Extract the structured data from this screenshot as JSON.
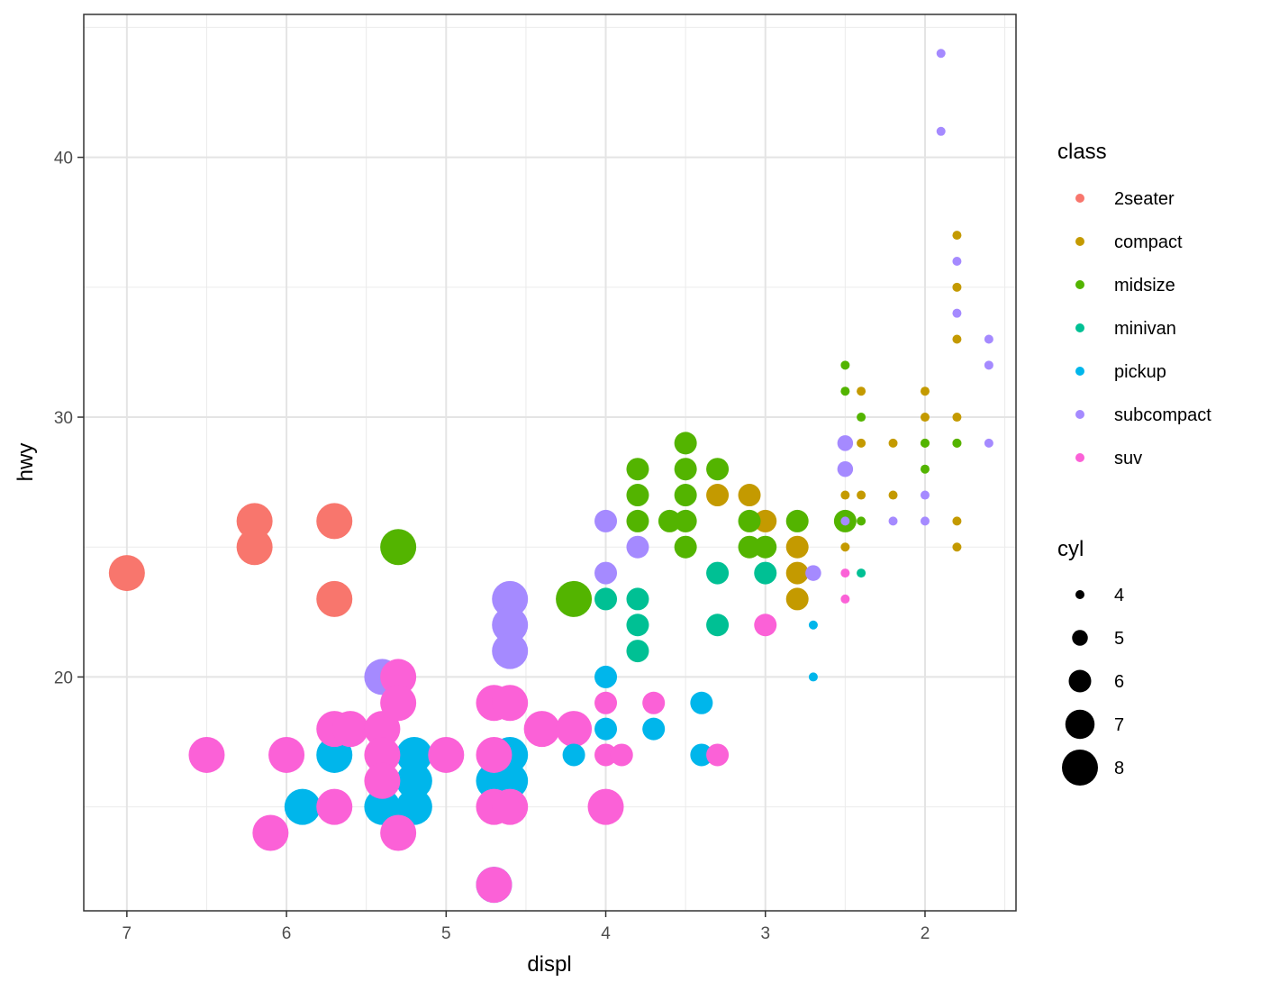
{
  "chart_data": {
    "type": "scatter",
    "title": "",
    "xlabel": "displ",
    "ylabel": "hwy",
    "x_reversed": true,
    "xlim": [
      7.27,
      1.43
    ],
    "ylim": [
      11.0,
      45.5
    ],
    "x_ticks": [
      7,
      6,
      5,
      4,
      3,
      2
    ],
    "y_ticks": [
      20,
      30,
      40
    ],
    "grid": true,
    "legend_placement": "right",
    "color_legend": {
      "title": "class",
      "entries": [
        {
          "label": "2seater",
          "color": "#F8766D"
        },
        {
          "label": "compact",
          "color": "#C49A00"
        },
        {
          "label": "midsize",
          "color": "#53B400"
        },
        {
          "label": "minivan",
          "color": "#00C094"
        },
        {
          "label": "pickup",
          "color": "#00B6EB"
        },
        {
          "label": "subcompact",
          "color": "#A58AFF"
        },
        {
          "label": "suv",
          "color": "#FB61D7"
        }
      ]
    },
    "size_legend": {
      "title": "cyl",
      "entries": [
        {
          "label": "4",
          "value": 4
        },
        {
          "label": "5",
          "value": 5
        },
        {
          "label": "6",
          "value": 6
        },
        {
          "label": "7",
          "value": 7
        },
        {
          "label": "8",
          "value": 8
        }
      ]
    },
    "points": [
      {
        "x": 7.0,
        "y": 24,
        "class": "2seater",
        "cyl": 8
      },
      {
        "x": 6.2,
        "y": 26,
        "class": "2seater",
        "cyl": 8
      },
      {
        "x": 6.2,
        "y": 25,
        "class": "2seater",
        "cyl": 8
      },
      {
        "x": 5.7,
        "y": 26,
        "class": "2seater",
        "cyl": 8
      },
      {
        "x": 5.7,
        "y": 23,
        "class": "2seater",
        "cyl": 8
      },
      {
        "x": 3.3,
        "y": 27,
        "class": "compact",
        "cyl": 6
      },
      {
        "x": 3.1,
        "y": 27,
        "class": "compact",
        "cyl": 6
      },
      {
        "x": 3.0,
        "y": 26,
        "class": "compact",
        "cyl": 6
      },
      {
        "x": 2.8,
        "y": 25,
        "class": "compact",
        "cyl": 6
      },
      {
        "x": 2.8,
        "y": 24,
        "class": "compact",
        "cyl": 6
      },
      {
        "x": 2.8,
        "y": 23,
        "class": "compact",
        "cyl": 6
      },
      {
        "x": 2.5,
        "y": 27,
        "class": "compact",
        "cyl": 4
      },
      {
        "x": 2.5,
        "y": 25,
        "class": "compact",
        "cyl": 4
      },
      {
        "x": 2.4,
        "y": 31,
        "class": "compact",
        "cyl": 4
      },
      {
        "x": 2.4,
        "y": 29,
        "class": "compact",
        "cyl": 4
      },
      {
        "x": 2.4,
        "y": 27,
        "class": "compact",
        "cyl": 4
      },
      {
        "x": 2.2,
        "y": 29,
        "class": "compact",
        "cyl": 4
      },
      {
        "x": 2.2,
        "y": 27,
        "class": "compact",
        "cyl": 4
      },
      {
        "x": 2.0,
        "y": 31,
        "class": "compact",
        "cyl": 4
      },
      {
        "x": 2.0,
        "y": 30,
        "class": "compact",
        "cyl": 4
      },
      {
        "x": 2.0,
        "y": 29,
        "class": "compact",
        "cyl": 4
      },
      {
        "x": 1.8,
        "y": 37,
        "class": "compact",
        "cyl": 4
      },
      {
        "x": 1.8,
        "y": 35,
        "class": "compact",
        "cyl": 4
      },
      {
        "x": 1.8,
        "y": 33,
        "class": "compact",
        "cyl": 4
      },
      {
        "x": 1.8,
        "y": 30,
        "class": "compact",
        "cyl": 4
      },
      {
        "x": 1.8,
        "y": 29,
        "class": "compact",
        "cyl": 4
      },
      {
        "x": 1.8,
        "y": 26,
        "class": "compact",
        "cyl": 4
      },
      {
        "x": 1.8,
        "y": 25,
        "class": "compact",
        "cyl": 4
      },
      {
        "x": 5.3,
        "y": 25,
        "class": "midsize",
        "cyl": 8
      },
      {
        "x": 4.2,
        "y": 23,
        "class": "midsize",
        "cyl": 8
      },
      {
        "x": 3.8,
        "y": 28,
        "class": "midsize",
        "cyl": 6
      },
      {
        "x": 3.8,
        "y": 27,
        "class": "midsize",
        "cyl": 6
      },
      {
        "x": 3.8,
        "y": 26,
        "class": "midsize",
        "cyl": 6
      },
      {
        "x": 3.6,
        "y": 26,
        "class": "midsize",
        "cyl": 6
      },
      {
        "x": 3.5,
        "y": 29,
        "class": "midsize",
        "cyl": 6
      },
      {
        "x": 3.5,
        "y": 28,
        "class": "midsize",
        "cyl": 6
      },
      {
        "x": 3.5,
        "y": 27,
        "class": "midsize",
        "cyl": 6
      },
      {
        "x": 3.5,
        "y": 26,
        "class": "midsize",
        "cyl": 6
      },
      {
        "x": 3.5,
        "y": 25,
        "class": "midsize",
        "cyl": 6
      },
      {
        "x": 3.3,
        "y": 28,
        "class": "midsize",
        "cyl": 6
      },
      {
        "x": 3.1,
        "y": 26,
        "class": "midsize",
        "cyl": 6
      },
      {
        "x": 3.1,
        "y": 25,
        "class": "midsize",
        "cyl": 6
      },
      {
        "x": 3.0,
        "y": 25,
        "class": "midsize",
        "cyl": 6
      },
      {
        "x": 2.8,
        "y": 26,
        "class": "midsize",
        "cyl": 6
      },
      {
        "x": 2.5,
        "y": 26,
        "class": "midsize",
        "cyl": 6
      },
      {
        "x": 2.5,
        "y": 32,
        "class": "midsize",
        "cyl": 4
      },
      {
        "x": 2.5,
        "y": 31,
        "class": "midsize",
        "cyl": 4
      },
      {
        "x": 2.4,
        "y": 30,
        "class": "midsize",
        "cyl": 4
      },
      {
        "x": 2.4,
        "y": 26,
        "class": "midsize",
        "cyl": 4
      },
      {
        "x": 2.0,
        "y": 29,
        "class": "midsize",
        "cyl": 4
      },
      {
        "x": 2.0,
        "y": 28,
        "class": "midsize",
        "cyl": 4
      },
      {
        "x": 1.8,
        "y": 29,
        "class": "midsize",
        "cyl": 4
      },
      {
        "x": 3.8,
        "y": 23,
        "class": "minivan",
        "cyl": 6
      },
      {
        "x": 3.8,
        "y": 22,
        "class": "minivan",
        "cyl": 6
      },
      {
        "x": 3.8,
        "y": 21,
        "class": "minivan",
        "cyl": 6
      },
      {
        "x": 4.0,
        "y": 23,
        "class": "minivan",
        "cyl": 6
      },
      {
        "x": 3.3,
        "y": 24,
        "class": "minivan",
        "cyl": 6
      },
      {
        "x": 3.3,
        "y": 22,
        "class": "minivan",
        "cyl": 6
      },
      {
        "x": 3.0,
        "y": 24,
        "class": "minivan",
        "cyl": 6
      },
      {
        "x": 2.4,
        "y": 24,
        "class": "minivan",
        "cyl": 4
      },
      {
        "x": 5.9,
        "y": 15,
        "class": "pickup",
        "cyl": 8
      },
      {
        "x": 5.7,
        "y": 17,
        "class": "pickup",
        "cyl": 8
      },
      {
        "x": 5.4,
        "y": 15,
        "class": "pickup",
        "cyl": 8
      },
      {
        "x": 5.2,
        "y": 17,
        "class": "pickup",
        "cyl": 8
      },
      {
        "x": 5.2,
        "y": 16,
        "class": "pickup",
        "cyl": 8
      },
      {
        "x": 5.2,
        "y": 15,
        "class": "pickup",
        "cyl": 8
      },
      {
        "x": 4.7,
        "y": 16,
        "class": "pickup",
        "cyl": 8
      },
      {
        "x": 4.7,
        "y": 12,
        "class": "pickup",
        "cyl": 8
      },
      {
        "x": 4.6,
        "y": 17,
        "class": "pickup",
        "cyl": 8
      },
      {
        "x": 4.6,
        "y": 16,
        "class": "pickup",
        "cyl": 8
      },
      {
        "x": 4.2,
        "y": 17,
        "class": "pickup",
        "cyl": 6
      },
      {
        "x": 4.0,
        "y": 20,
        "class": "pickup",
        "cyl": 6
      },
      {
        "x": 4.0,
        "y": 18,
        "class": "pickup",
        "cyl": 6
      },
      {
        "x": 3.7,
        "y": 18,
        "class": "pickup",
        "cyl": 6
      },
      {
        "x": 3.4,
        "y": 19,
        "class": "pickup",
        "cyl": 6
      },
      {
        "x": 3.4,
        "y": 17,
        "class": "pickup",
        "cyl": 6
      },
      {
        "x": 2.7,
        "y": 22,
        "class": "pickup",
        "cyl": 4
      },
      {
        "x": 2.7,
        "y": 20,
        "class": "pickup",
        "cyl": 4
      },
      {
        "x": 5.4,
        "y": 20,
        "class": "subcompact",
        "cyl": 8
      },
      {
        "x": 4.6,
        "y": 23,
        "class": "subcompact",
        "cyl": 8
      },
      {
        "x": 4.6,
        "y": 22,
        "class": "subcompact",
        "cyl": 8
      },
      {
        "x": 4.6,
        "y": 21,
        "class": "subcompact",
        "cyl": 8
      },
      {
        "x": 4.0,
        "y": 26,
        "class": "subcompact",
        "cyl": 6
      },
      {
        "x": 4.0,
        "y": 24,
        "class": "subcompact",
        "cyl": 6
      },
      {
        "x": 3.8,
        "y": 25,
        "class": "subcompact",
        "cyl": 6
      },
      {
        "x": 2.7,
        "y": 24,
        "class": "subcompact",
        "cyl": 5
      },
      {
        "x": 2.5,
        "y": 29,
        "class": "subcompact",
        "cyl": 5
      },
      {
        "x": 2.5,
        "y": 28,
        "class": "subcompact",
        "cyl": 5
      },
      {
        "x": 2.5,
        "y": 26,
        "class": "subcompact",
        "cyl": 4
      },
      {
        "x": 2.2,
        "y": 26,
        "class": "subcompact",
        "cyl": 4
      },
      {
        "x": 2.0,
        "y": 27,
        "class": "subcompact",
        "cyl": 4
      },
      {
        "x": 2.0,
        "y": 26,
        "class": "subcompact",
        "cyl": 4
      },
      {
        "x": 1.9,
        "y": 44,
        "class": "subcompact",
        "cyl": 4
      },
      {
        "x": 1.9,
        "y": 41,
        "class": "subcompact",
        "cyl": 4
      },
      {
        "x": 1.8,
        "y": 36,
        "class": "subcompact",
        "cyl": 4
      },
      {
        "x": 1.8,
        "y": 34,
        "class": "subcompact",
        "cyl": 4
      },
      {
        "x": 1.6,
        "y": 33,
        "class": "subcompact",
        "cyl": 4
      },
      {
        "x": 1.6,
        "y": 32,
        "class": "subcompact",
        "cyl": 4
      },
      {
        "x": 1.6,
        "y": 29,
        "class": "subcompact",
        "cyl": 4
      },
      {
        "x": 6.5,
        "y": 17,
        "class": "suv",
        "cyl": 8
      },
      {
        "x": 6.1,
        "y": 14,
        "class": "suv",
        "cyl": 8
      },
      {
        "x": 6.0,
        "y": 17,
        "class": "suv",
        "cyl": 8
      },
      {
        "x": 5.7,
        "y": 18,
        "class": "suv",
        "cyl": 8
      },
      {
        "x": 5.7,
        "y": 15,
        "class": "suv",
        "cyl": 8
      },
      {
        "x": 5.6,
        "y": 18,
        "class": "suv",
        "cyl": 8
      },
      {
        "x": 5.4,
        "y": 18,
        "class": "suv",
        "cyl": 8
      },
      {
        "x": 5.4,
        "y": 17,
        "class": "suv",
        "cyl": 8
      },
      {
        "x": 5.4,
        "y": 16,
        "class": "suv",
        "cyl": 8
      },
      {
        "x": 5.3,
        "y": 20,
        "class": "suv",
        "cyl": 8
      },
      {
        "x": 5.3,
        "y": 19,
        "class": "suv",
        "cyl": 8
      },
      {
        "x": 5.3,
        "y": 14,
        "class": "suv",
        "cyl": 8
      },
      {
        "x": 5.0,
        "y": 17,
        "class": "suv",
        "cyl": 8
      },
      {
        "x": 4.7,
        "y": 19,
        "class": "suv",
        "cyl": 8
      },
      {
        "x": 4.7,
        "y": 17,
        "class": "suv",
        "cyl": 8
      },
      {
        "x": 4.7,
        "y": 15,
        "class": "suv",
        "cyl": 8
      },
      {
        "x": 4.7,
        "y": 12,
        "class": "suv",
        "cyl": 8
      },
      {
        "x": 4.6,
        "y": 19,
        "class": "suv",
        "cyl": 8
      },
      {
        "x": 4.6,
        "y": 15,
        "class": "suv",
        "cyl": 8
      },
      {
        "x": 4.4,
        "y": 18,
        "class": "suv",
        "cyl": 8
      },
      {
        "x": 4.2,
        "y": 18,
        "class": "suv",
        "cyl": 8
      },
      {
        "x": 4.0,
        "y": 19,
        "class": "suv",
        "cyl": 6
      },
      {
        "x": 4.0,
        "y": 17,
        "class": "suv",
        "cyl": 6
      },
      {
        "x": 4.0,
        "y": 15,
        "class": "suv",
        "cyl": 8
      },
      {
        "x": 3.9,
        "y": 17,
        "class": "suv",
        "cyl": 6
      },
      {
        "x": 3.7,
        "y": 19,
        "class": "suv",
        "cyl": 6
      },
      {
        "x": 3.3,
        "y": 17,
        "class": "suv",
        "cyl": 6
      },
      {
        "x": 3.0,
        "y": 22,
        "class": "suv",
        "cyl": 6
      },
      {
        "x": 2.5,
        "y": 24,
        "class": "suv",
        "cyl": 4
      },
      {
        "x": 2.5,
        "y": 23,
        "class": "suv",
        "cyl": 4
      }
    ]
  }
}
